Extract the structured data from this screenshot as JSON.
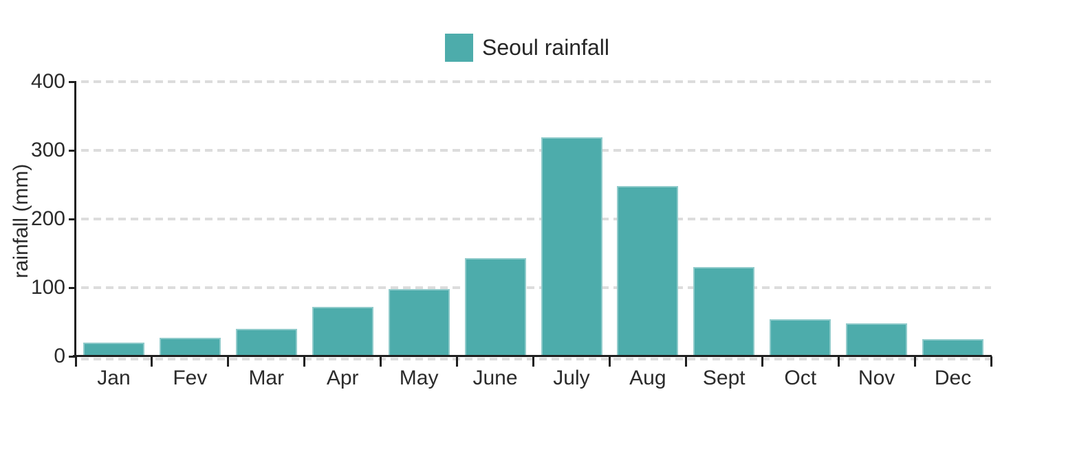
{
  "legend": {
    "label": "Seoul rainfall"
  },
  "chart_data": {
    "type": "bar",
    "title": "Seoul rainfall",
    "series_name": "Seoul rainfall",
    "categories": [
      "Jan",
      "Fev",
      "Mar",
      "Apr",
      "May",
      "June",
      "July",
      "Aug",
      "Sept",
      "Oct",
      "Nov",
      "Dec"
    ],
    "values": [
      20,
      27,
      40,
      72,
      98,
      143,
      319,
      248,
      130,
      54,
      48,
      25
    ],
    "unit": "mm",
    "xlabel": "",
    "ylabel": "rainfall (mm)",
    "ylim": [
      0,
      400
    ],
    "yticks": [
      0,
      100,
      200,
      300,
      400
    ],
    "grid": "horizontal dashed",
    "legend_position": "top-center",
    "colors": {
      "bar": "#4DACAB",
      "axis": "#1f1f1f",
      "gridline": "#dcdcdc",
      "text": "#2b2b2b",
      "background": "#ffffff"
    }
  }
}
